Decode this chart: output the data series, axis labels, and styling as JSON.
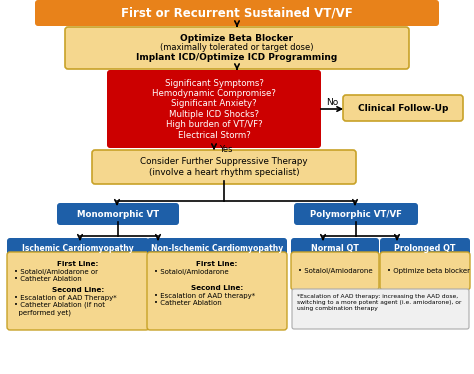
{
  "title": "First or Recurrent Sustained VT/VF",
  "title_bg": "#E8821A",
  "title_text_color": "white",
  "box2_line1": "Optimize Beta Blocker",
  "box2_line2": "(maximally tolerated or target dose)",
  "box2_line3": "Implant ICD/Optimize ICD Programming",
  "box2_bg": "#F5D78E",
  "box2_border": "#C8A228",
  "box3_text": "Significant Symptoms?\nHemodynamic Compromise?\nSignificant Anxiety?\nMultiple ICD Shocks?\nHigh burden of VT/VF?\nElectrical Storm?",
  "box3_bg": "#CC0000",
  "box3_text_color": "white",
  "box_clinical_text": "Clinical Follow-Up",
  "box_clinical_bg": "#F5D78E",
  "box_clinical_border": "#C8A228",
  "box4_text": "Consider Further Suppressive Therapy\n(involve a heart rhythm specialist)",
  "box4_bg": "#F5D78E",
  "box4_border": "#C8A228",
  "mono_text": "Monomorphic VT",
  "mono_bg": "#1E5FA8",
  "poly_text": "Polymorphic VT/VF",
  "poly_bg": "#1E5FA8",
  "ischemic_header": "Ischemic Cardiomyopathy",
  "ischemic_bg": "#1E5FA8",
  "nonischemic_header": "Non-Ischemic Cardiomyopathy",
  "nonischemic_bg": "#1E5FA8",
  "normalqt_header": "Normal QT",
  "normalqt_bg": "#1E5FA8",
  "prolongedqt_header": "Prolonged QT",
  "prolongedqt_bg": "#1E5FA8",
  "ischemic_body_bold": "First Line:",
  "ischemic_body_normal": "• Sotalol/Amiodarone or\n• Catheter Ablation",
  "ischemic_body_bold2": "Second Line:",
  "ischemic_body_normal2": "• Escalation of AAD Therapy*\n• Catheter Ablation (if not\n  performed yet)",
  "nonischemic_body_bold": "First Line:",
  "nonischemic_body_normal": "• Sotalol/Amiodarone",
  "nonischemic_body_bold2": "Second Line:",
  "nonischemic_body_normal2": "• Escalation of AAD therapy*\n• Catheter Ablation",
  "normalqt_body": "• Sotalol/Amiodarone",
  "prolongedqt_body": "• Optimize beta blocker",
  "footnote": "*Escalation of AAD therapy: increasing the AAD dose,\nswitching to a more potent agent (i.e. amiodarone), or\nusing combination therapy",
  "body_bg": "#F5D78E",
  "body_border": "#C8A228",
  "header_text_color": "white",
  "body_text_color": "black",
  "arrow_color": "black",
  "no_label": "No",
  "yes_label": "Yes",
  "footnote_bg": "#F0F0F0",
  "footnote_border": "#AAAAAA",
  "bg_color": "white"
}
